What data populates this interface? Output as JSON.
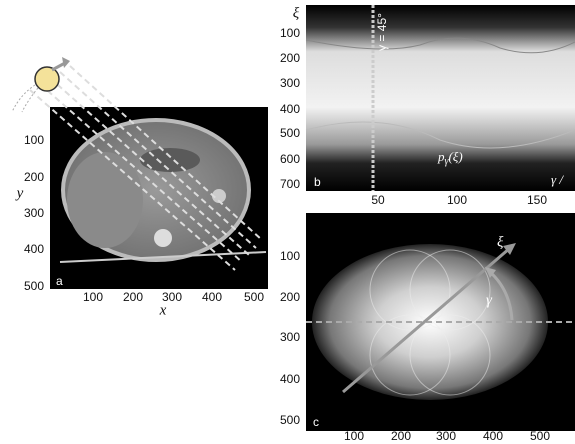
{
  "panel_a": {
    "label": "a",
    "x_axis_label": "x",
    "y_axis_label": "y",
    "xticks": [
      100,
      200,
      300,
      400,
      500
    ],
    "yticks": [
      100,
      200,
      300,
      400,
      500
    ]
  },
  "panel_b": {
    "label": "b",
    "xi_label": "ξ",
    "angle_annotation": "γ = 45°",
    "projection_label": {
      "base": "p",
      "subscript": "γ",
      "argument": "(ξ)"
    },
    "gamma_label": "γ /",
    "xticks": [
      50,
      100,
      150
    ],
    "yticks": [
      100,
      200,
      300,
      400,
      500,
      600,
      700
    ]
  },
  "panel_c": {
    "label": "c",
    "xi_label": "ξ",
    "gamma_label": "γ",
    "xticks": [
      100,
      200,
      300,
      400,
      500
    ],
    "yticks": [
      100,
      200,
      300,
      400,
      500
    ]
  }
}
